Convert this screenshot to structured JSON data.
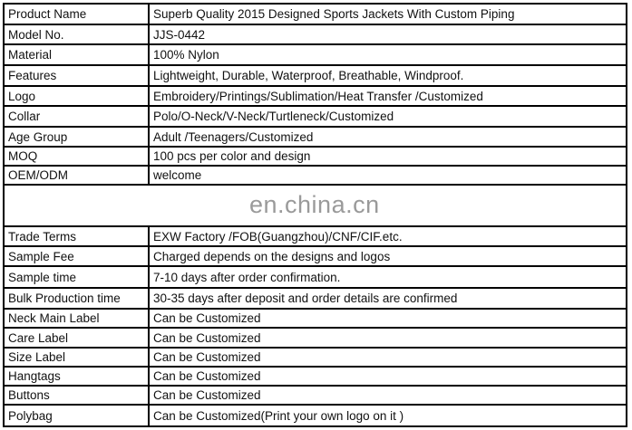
{
  "rows_top": [
    {
      "label": "Product Name",
      "value": "Superb Quality 2015 Designed Sports Jackets With Custom Piping"
    },
    {
      "label": "Model No.",
      "value": "JJS-0442"
    },
    {
      "label": "Material",
      "value": "100% Nylon"
    },
    {
      "label": "Features",
      "value": "Lightweight, Durable, Waterproof, Breathable, Windproof."
    },
    {
      "label": "Logo",
      "value": "Embroidery/Printings/Sublimation/Heat Transfer /Customized"
    },
    {
      "label": "Collar",
      "value": "Polo/O-Neck/V-Neck/Turtleneck/Customized"
    },
    {
      "label": "Age Group",
      "value": "Adult /Teenagers/Customized"
    },
    {
      "label": "MOQ",
      "value": "100 pcs per color and design"
    },
    {
      "label": "OEM/ODM",
      "value": "welcome"
    }
  ],
  "watermark": "en.china.cn",
  "rows_bottom": [
    {
      "label": "Trade Terms",
      "value": "EXW Factory /FOB(Guangzhou)/CNF/CIF.etc."
    },
    {
      "label": "Sample Fee",
      "value": "Charged depends on the designs and logos"
    },
    {
      "label": "Sample time",
      "value": "7-10 days after order confirmation."
    },
    {
      "label": "Bulk Production time",
      "value": "30-35 days after deposit and order details are confirmed"
    },
    {
      "label": "Neck Main Label",
      "value": "Can be Customized"
    },
    {
      "label": "Care Label",
      "value": "Can be Customized"
    },
    {
      "label": "Size Label",
      "value": "Can be Customized"
    },
    {
      "label": "Hangtags",
      "value": "Can be Customized"
    },
    {
      "label": "Buttons",
      "value": "Can be Customized"
    },
    {
      "label": "Polybag",
      "value": "Can be Customized(Print your own logo on it )"
    }
  ]
}
